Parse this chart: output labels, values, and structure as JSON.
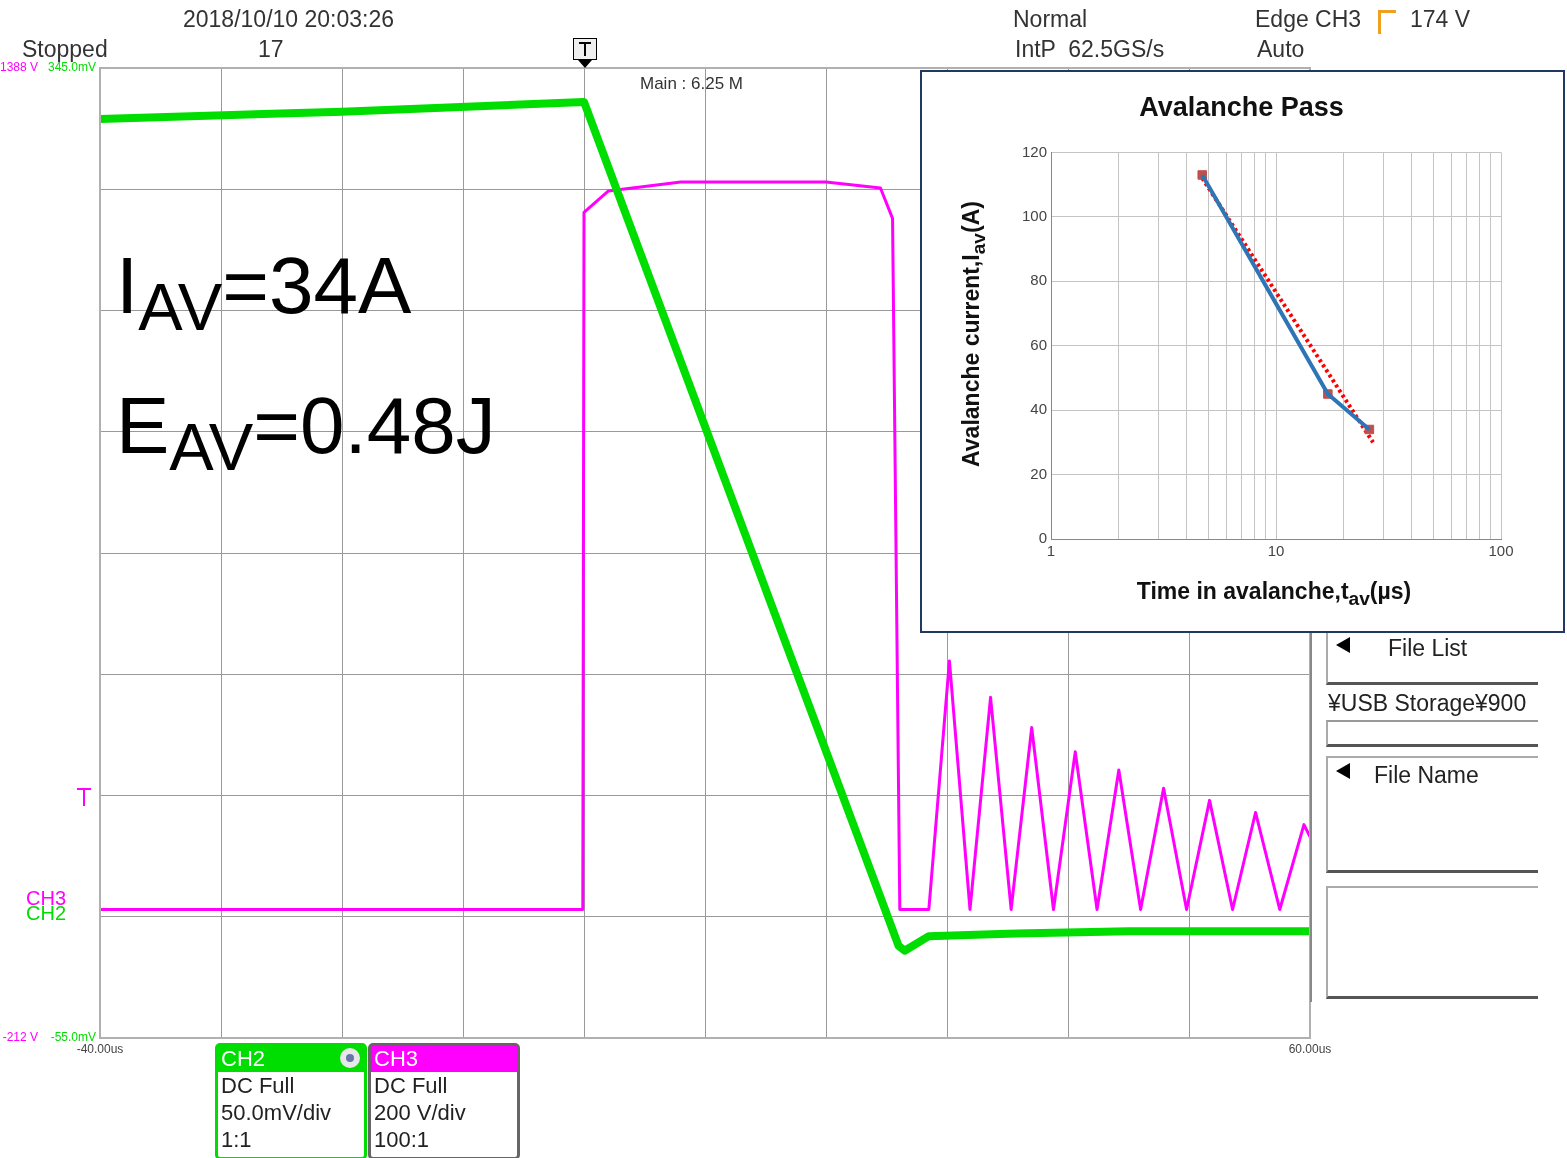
{
  "chart_data": [
    {
      "type": "line",
      "xlim": [
        -40,
        60
      ],
      "xticks": [
        {
          "value": -40,
          "label": "-40.00us"
        },
        {
          "value": -30,
          "label": null
        },
        {
          "value": -20,
          "label": null
        },
        {
          "value": -10,
          "label": null
        },
        {
          "value": 0,
          "label": null
        },
        {
          "value": 10,
          "label": null
        },
        {
          "value": 20,
          "label": null
        },
        {
          "value": 30,
          "label": null
        },
        {
          "value": 40,
          "label": null
        },
        {
          "value": 50,
          "label": null
        },
        {
          "value": 60,
          "label": "60.00us"
        }
      ],
      "ylim": [
        -55,
        345
      ],
      "yticks": [
        {
          "value": -55,
          "label": "-55.0mV"
        },
        {
          "value": -5,
          "label": null
        },
        {
          "value": 45,
          "label": null
        },
        {
          "value": 95,
          "label": null
        },
        {
          "value": 145,
          "label": null
        },
        {
          "value": 195,
          "label": null
        },
        {
          "value": 245,
          "label": null
        },
        {
          "value": 295,
          "label": null
        },
        {
          "value": 345,
          "label": "345.0mV"
        }
      ],
      "y2lim": [
        -212,
        1388
      ],
      "y2ticks": [
        {
          "value": -212,
          "label": "-212 V"
        },
        {
          "value": 1388,
          "label": "1388 V"
        }
      ],
      "grid": true,
      "marker": "none",
      "legend": "bottom left",
      "series": [
        {
          "name": "CH2",
          "color": "#00dd00",
          "x": [
            -40,
            -20,
            0,
            26,
            26.5,
            28.5,
            35,
            45,
            60
          ],
          "values": [
            324,
            327,
            331,
            -17,
            -19,
            -13,
            -12,
            -11,
            -11
          ]
        },
        {
          "name": "CH3",
          "color": "#ff00ff",
          "axis": "y2",
          "x": [
            -40,
            -0.1,
            0,
            2,
            8,
            20,
            24.5,
            25.5,
            26.1,
            28.5,
            30.2,
            31.9,
            33.6,
            35.3,
            37,
            38.8,
            40.6,
            42.4,
            44.2,
            46,
            47.9,
            49.8,
            51.7,
            53.6,
            55.5,
            57.5,
            59.5,
            60
          ],
          "values": [
            0,
            0,
            1150,
            1185,
            1200,
            1200,
            1190,
            1140,
            0,
            0,
            410,
            0,
            350,
            0,
            300,
            0,
            260,
            0,
            230,
            0,
            200,
            0,
            180,
            0,
            160,
            0,
            140,
            120
          ]
        }
      ],
      "annotations": [
        "DC Full\n50.0mV/div\n1:1",
        "DC Full\n200 V/div\n100:1",
        "2018/10/10 20:03:26",
        "Stopped",
        "17",
        "Normal",
        "IntP  62.5GS/s",
        "Edge CH3",
        "174 V",
        "Auto",
        "Main : 6.25 M",
        "I$_{AV}$=34A",
        "E$_{AV}$=0.48J",
        "File List",
        "¥USB Storage¥900",
        "File Name"
      ]
    },
    {
      "type": "line",
      "title": "Avalanche Pass",
      "xlabel": "Time in avalanche,t$_{av}$(µs)",
      "ylabel": "Avalanche current,I$_{av}$(A)",
      "log": "x",
      "grid": true,
      "xlim": [
        1,
        100
      ],
      "xticks": [
        1,
        {
          "value": 2,
          "label": null
        },
        {
          "value": 3,
          "label": null
        },
        {
          "value": 4,
          "label": null
        },
        {
          "value": 5,
          "label": null
        },
        {
          "value": 6,
          "label": null
        },
        {
          "value": 7,
          "label": null
        },
        {
          "value": 8,
          "label": null
        },
        {
          "value": 9,
          "label": null
        },
        10,
        {
          "value": 20,
          "label": null
        },
        {
          "value": 30,
          "label": null
        },
        {
          "value": 40,
          "label": null
        },
        {
          "value": 50,
          "label": null
        },
        {
          "value": 60,
          "label": null
        },
        {
          "value": 70,
          "label": null
        },
        {
          "value": 80,
          "label": null
        },
        {
          "value": 90,
          "label": null
        },
        100
      ],
      "ylim": [
        0,
        120
      ],
      "yticks": [
        0,
        20,
        40,
        60,
        80,
        100,
        120
      ],
      "series": [
        {
          "type": "line",
          "color": "#2e75b6",
          "x": [
            4.7,
            17,
            26
          ],
          "values": [
            113,
            45,
            34
          ]
        },
        {
          "type": "scatter",
          "color": "#c0504d",
          "marker": "square",
          "x": [
            4.7,
            17,
            26
          ],
          "values": [
            113,
            45,
            34
          ]
        },
        {
          "type": "line",
          "color": "#ff0000",
          "line_style": "dotted",
          "x": [
            4.7,
            27
          ],
          "values": [
            112,
            30
          ]
        }
      ]
    }
  ]
}
